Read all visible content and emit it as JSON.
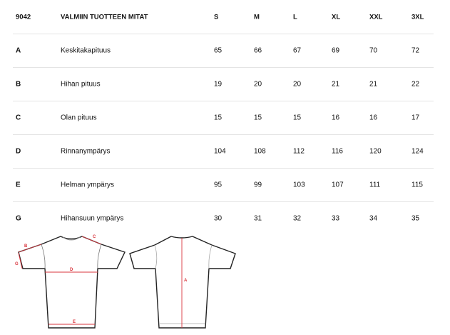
{
  "table": {
    "header": {
      "code": "9042",
      "title": "VALMIIN TUOTTEEN MITAT",
      "sizes": [
        "S",
        "M",
        "L",
        "XL",
        "XXL",
        "3XL"
      ]
    },
    "rows": [
      {
        "code": "A",
        "name": "Keskitakapituus",
        "values": [
          "65",
          "66",
          "67",
          "69",
          "70",
          "72"
        ]
      },
      {
        "code": "B",
        "name": "Hihan pituus",
        "values": [
          "19",
          "20",
          "20",
          "21",
          "21",
          "22"
        ]
      },
      {
        "code": "C",
        "name": "Olan pituus",
        "values": [
          "15",
          "15",
          "15",
          "16",
          "16",
          "17"
        ]
      },
      {
        "code": "D",
        "name": "Rinnanympärys",
        "values": [
          "104",
          "108",
          "112",
          "116",
          "120",
          "124"
        ]
      },
      {
        "code": "E",
        "name": "Helman ympärys",
        "values": [
          "95",
          "99",
          "103",
          "107",
          "111",
          "115"
        ]
      },
      {
        "code": "G",
        "name": "Hihansuun ympärys",
        "values": [
          "30",
          "31",
          "32",
          "33",
          "34",
          "35"
        ]
      }
    ]
  },
  "diagram": {
    "labels": {
      "a": "A",
      "b": "B",
      "c": "C",
      "d": "D",
      "e": "E",
      "g": "G"
    },
    "accent": "#d9363e"
  }
}
